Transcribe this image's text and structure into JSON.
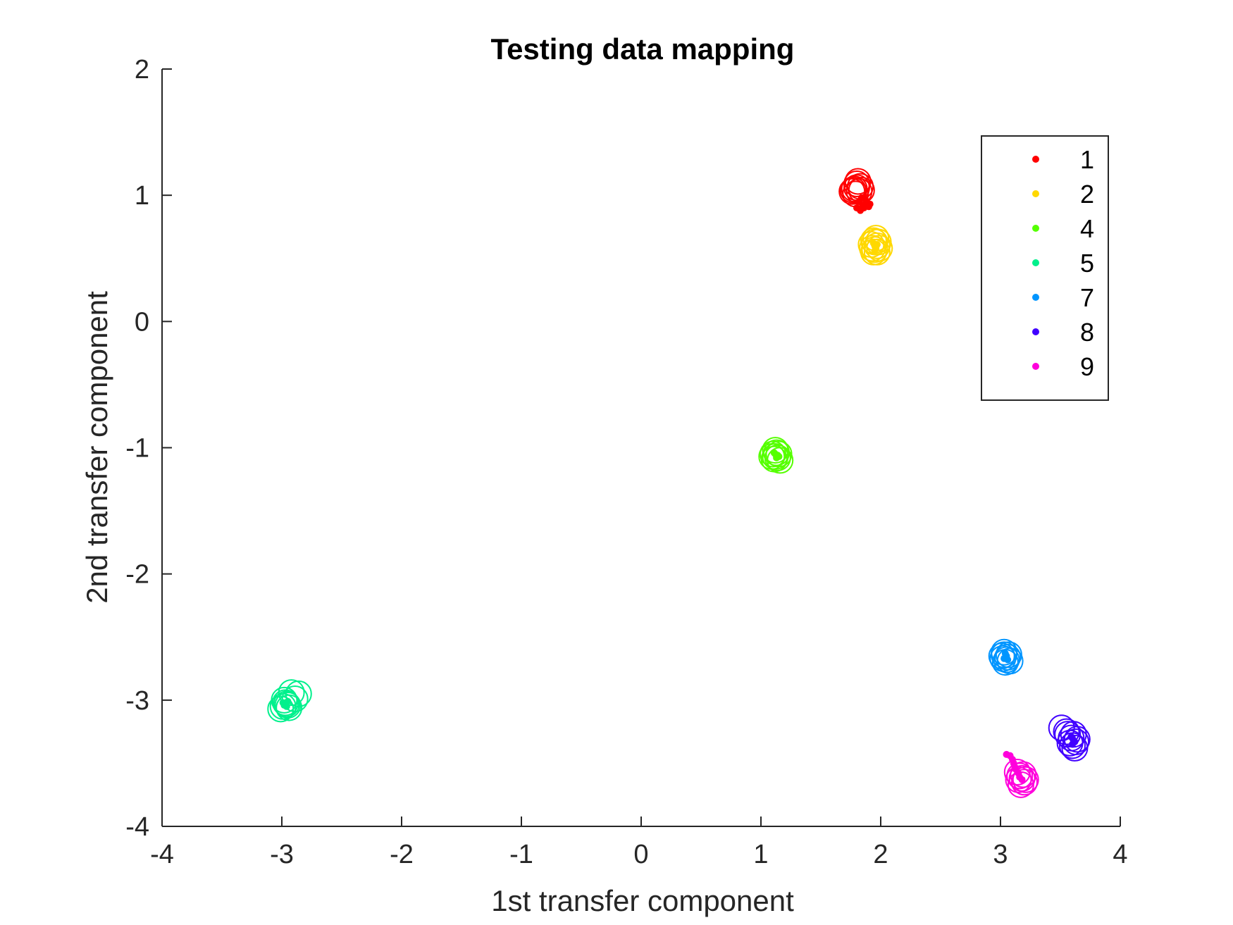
{
  "chart_data": {
    "type": "scatter",
    "title": "Testing data mapping",
    "xlabel": "1st transfer component",
    "ylabel": "2nd transfer component",
    "xlim": [
      -4,
      4
    ],
    "ylim": [
      -4,
      2
    ],
    "xticks": [
      "-4",
      "-3",
      "-2",
      "-1",
      "0",
      "1",
      "2",
      "3",
      "4"
    ],
    "yticks": [
      "2",
      "1",
      "0",
      "-1",
      "-2",
      "-3",
      "-4"
    ],
    "grid": false,
    "legend_position": "top-right",
    "marker_note": "open circles = larger markers, dots = small filled markers",
    "series": [
      {
        "name": "1",
        "color": "#ff0000",
        "circles": [
          [
            1.78,
            1.05
          ],
          [
            1.8,
            1.09
          ],
          [
            1.82,
            1.03
          ],
          [
            1.79,
            1.01
          ],
          [
            1.83,
            1.07
          ],
          [
            1.77,
            1.04
          ],
          [
            1.81,
            1.11
          ],
          [
            1.84,
            1.04
          ],
          [
            1.8,
            1.06
          ],
          [
            1.76,
            1.03
          ]
        ],
        "dots": [
          [
            1.8,
            0.9
          ],
          [
            1.83,
            0.88
          ],
          [
            1.85,
            0.92
          ],
          [
            1.88,
            0.94
          ],
          [
            1.9,
            0.91
          ],
          [
            1.82,
            0.95
          ],
          [
            1.87,
            0.97
          ],
          [
            1.91,
            0.93
          ],
          [
            1.86,
            0.9
          ],
          [
            1.84,
            0.98
          ]
        ]
      },
      {
        "name": "2",
        "color": "#ffd800",
        "circles": [
          [
            1.93,
            0.58
          ],
          [
            1.95,
            0.63
          ],
          [
            1.97,
            0.6
          ],
          [
            1.94,
            0.55
          ],
          [
            1.96,
            0.66
          ],
          [
            1.99,
            0.58
          ],
          [
            1.92,
            0.61
          ],
          [
            1.98,
            0.63
          ],
          [
            1.95,
            0.57
          ],
          [
            1.94,
            0.64
          ],
          [
            1.97,
            0.55
          ]
        ],
        "dots": [
          [
            1.95,
            0.6
          ],
          [
            1.96,
            0.58
          ],
          [
            1.94,
            0.62
          ],
          [
            1.97,
            0.61
          ],
          [
            1.95,
            0.56
          ]
        ]
      },
      {
        "name": "4",
        "color": "#55ff00",
        "circles": [
          [
            1.1,
            -1.05
          ],
          [
            1.12,
            -1.02
          ],
          [
            1.14,
            -1.08
          ],
          [
            1.11,
            -1.09
          ],
          [
            1.15,
            -1.05
          ],
          [
            1.13,
            -1.04
          ],
          [
            1.09,
            -1.07
          ],
          [
            1.16,
            -1.1
          ],
          [
            1.12,
            -1.07
          ]
        ],
        "dots": [
          [
            1.12,
            -1.05
          ],
          [
            1.14,
            -1.06
          ],
          [
            1.11,
            -1.04
          ],
          [
            1.13,
            -1.08
          ],
          [
            1.15,
            -1.07
          ]
        ]
      },
      {
        "name": "5",
        "color": "#00f08c",
        "circles": [
          [
            -3.01,
            -3.07
          ],
          [
            -2.97,
            -3.02
          ],
          [
            -2.95,
            -3.04
          ],
          [
            -2.92,
            -2.94
          ],
          [
            -2.89,
            -2.99
          ],
          [
            -2.86,
            -2.95
          ],
          [
            -2.99,
            -3.05
          ],
          [
            -2.94,
            -3.06
          ],
          [
            -2.98,
            -3.0
          ],
          [
            -2.96,
            -3.03
          ]
        ],
        "dots": [
          [
            -2.97,
            -3.03
          ],
          [
            -2.95,
            -3.01
          ],
          [
            -2.99,
            -3.02
          ],
          [
            -2.96,
            -3.05
          ],
          [
            -2.98,
            -3.04
          ]
        ]
      },
      {
        "name": "7",
        "color": "#0095ff",
        "circles": [
          [
            3.01,
            -2.65
          ],
          [
            3.03,
            -2.62
          ],
          [
            3.05,
            -2.68
          ],
          [
            3.07,
            -2.64
          ],
          [
            3.04,
            -2.7
          ],
          [
            3.06,
            -2.66
          ],
          [
            3.02,
            -2.67
          ],
          [
            3.08,
            -2.69
          ],
          [
            3.03,
            -2.64
          ]
        ],
        "dots": [
          [
            3.04,
            -2.66
          ],
          [
            3.05,
            -2.65
          ],
          [
            3.03,
            -2.67
          ],
          [
            3.06,
            -2.68
          ],
          [
            3.04,
            -2.63
          ]
        ]
      },
      {
        "name": "8",
        "color": "#4000ff",
        "circles": [
          [
            3.51,
            -3.22
          ],
          [
            3.56,
            -3.27
          ],
          [
            3.59,
            -3.3
          ],
          [
            3.61,
            -3.27
          ],
          [
            3.63,
            -3.33
          ],
          [
            3.6,
            -3.36
          ],
          [
            3.64,
            -3.31
          ],
          [
            3.58,
            -3.34
          ],
          [
            3.62,
            -3.38
          ],
          [
            3.55,
            -3.25
          ]
        ],
        "dots": [
          [
            3.6,
            -3.3
          ],
          [
            3.61,
            -3.32
          ],
          [
            3.59,
            -3.29
          ],
          [
            3.62,
            -3.33
          ],
          [
            3.6,
            -3.35
          ]
        ]
      },
      {
        "name": "9",
        "color": "#ff00dc",
        "circles": [
          [
            3.14,
            -3.57
          ],
          [
            3.16,
            -3.6
          ],
          [
            3.18,
            -3.62
          ],
          [
            3.2,
            -3.65
          ],
          [
            3.17,
            -3.67
          ],
          [
            3.15,
            -3.63
          ],
          [
            3.19,
            -3.59
          ],
          [
            3.21,
            -3.63
          ]
        ],
        "dots": [
          [
            3.05,
            -3.43
          ],
          [
            3.08,
            -3.44
          ],
          [
            3.1,
            -3.47
          ],
          [
            3.11,
            -3.5
          ],
          [
            3.12,
            -3.53
          ],
          [
            3.13,
            -3.55
          ],
          [
            3.15,
            -3.58
          ],
          [
            3.16,
            -3.61
          ],
          [
            3.18,
            -3.63
          ]
        ]
      }
    ]
  }
}
